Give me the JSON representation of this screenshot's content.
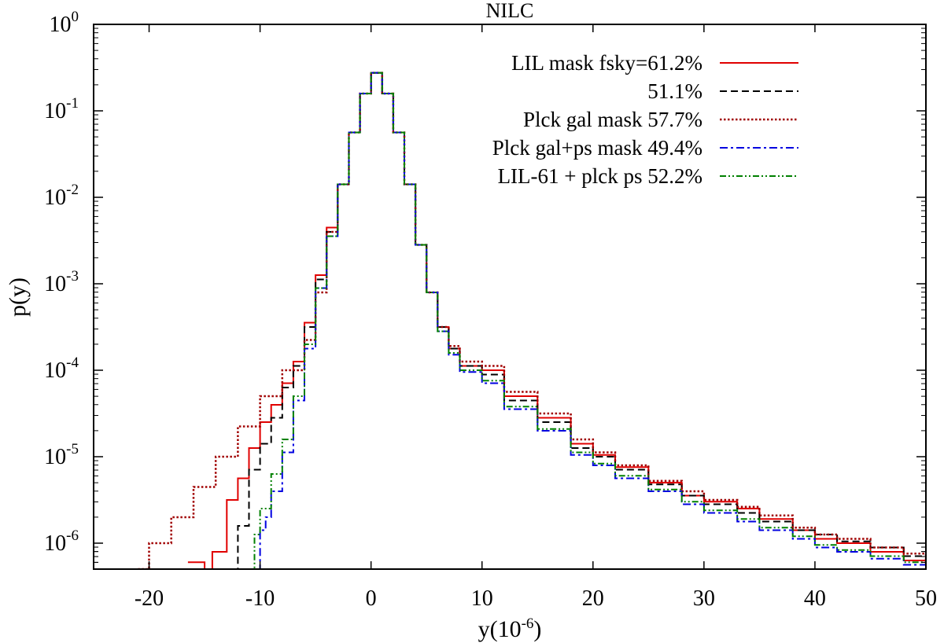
{
  "chart_data": {
    "type": "line",
    "title": "NILC",
    "xlabel": "y(10",
    "xlabel_exponent": "-6",
    "xlabel_suffix": ")",
    "ylabel": "p(y)",
    "yscale": "log",
    "xlim": [
      -25,
      50
    ],
    "ylim_log10": [
      -6.3,
      0
    ],
    "x_ticks": [
      -20,
      -10,
      0,
      10,
      20,
      30,
      40,
      50
    ],
    "x_tick_labels": [
      "-20",
      "-10",
      "0",
      "10",
      "20",
      "30",
      "40",
      "50"
    ],
    "y_ticks_exp": [
      0,
      -1,
      -2,
      -3,
      -4,
      -5,
      -6
    ],
    "y_tick_base": "10",
    "y_tick_exponents": [
      "0",
      "-1",
      "-2",
      "-3",
      "-4",
      "-5",
      "-6"
    ],
    "legend_position": "top-right",
    "series": [
      {
        "name": "LIL mask fsky=61.2%",
        "color": "#e00000",
        "dash": "solid",
        "x": [
          -16.5,
          -15,
          -14.3,
          -13,
          -12,
          -11,
          -10,
          -9,
          -8,
          -7,
          -6,
          -5,
          -4,
          -3,
          -2,
          -1,
          0,
          1,
          2,
          3,
          4,
          5,
          6,
          7,
          8,
          10,
          12,
          15,
          18,
          20,
          22,
          25,
          28,
          30,
          33,
          35,
          38,
          40,
          42,
          45,
          48,
          50
        ],
        "logp": [
          -6.22,
          -6.3,
          -6.1,
          -5.5,
          -5.25,
          -4.9,
          -4.6,
          -4.4,
          -4.15,
          -3.9,
          -3.45,
          -2.9,
          -2.35,
          -1.85,
          -1.25,
          -0.8,
          -0.56,
          -0.8,
          -1.25,
          -1.85,
          -2.55,
          -3.1,
          -3.5,
          -3.75,
          -3.95,
          -4.0,
          -4.3,
          -4.55,
          -4.85,
          -4.98,
          -5.12,
          -5.3,
          -5.45,
          -5.52,
          -5.6,
          -5.72,
          -5.85,
          -5.95,
          -6.0,
          -6.1,
          -6.2,
          -6.3
        ]
      },
      {
        "name": "51.1%",
        "color": "#000000",
        "dash": "dashed",
        "x": [
          -13.5,
          -12,
          -11,
          -10,
          -9,
          -8,
          -7,
          -6,
          -5,
          -4,
          -3,
          -2,
          -1,
          0,
          1,
          2,
          3,
          4,
          5,
          6,
          7,
          8,
          10,
          12,
          15,
          18,
          20,
          22,
          25,
          28,
          30,
          33,
          35,
          38,
          40,
          42,
          45,
          48,
          50
        ],
        "logp": [
          -6.3,
          -5.8,
          -5.15,
          -4.85,
          -4.55,
          -4.2,
          -3.95,
          -3.5,
          -2.95,
          -2.4,
          -1.85,
          -1.25,
          -0.8,
          -0.56,
          -0.8,
          -1.25,
          -1.85,
          -2.55,
          -3.1,
          -3.5,
          -3.75,
          -3.95,
          -4.05,
          -4.35,
          -4.6,
          -4.9,
          -5.0,
          -5.15,
          -5.32,
          -5.45,
          -5.55,
          -5.65,
          -5.75,
          -5.85,
          -5.9,
          -5.98,
          -6.05,
          -6.15,
          -6.2
        ]
      },
      {
        "name": "Plck gal mask 57.7%",
        "color": "#a00000",
        "dash": "dotted",
        "x": [
          -21,
          -20,
          -18,
          -16,
          -14,
          -12,
          -10,
          -8,
          -6,
          -5,
          -4,
          -3,
          -2,
          -1,
          0,
          1,
          2,
          3,
          4,
          5,
          6,
          7,
          8,
          10,
          12,
          15,
          18,
          20,
          22,
          25,
          28,
          30,
          33,
          35,
          38,
          40,
          42,
          45,
          48,
          50
        ],
        "logp": [
          -6.3,
          -6.0,
          -5.7,
          -5.35,
          -5.0,
          -4.65,
          -4.3,
          -4.0,
          -3.65,
          -3.1,
          -2.4,
          -1.85,
          -1.25,
          -0.8,
          -0.56,
          -0.8,
          -1.25,
          -1.85,
          -2.55,
          -3.1,
          -3.5,
          -3.72,
          -3.9,
          -3.95,
          -4.25,
          -4.5,
          -4.8,
          -4.95,
          -5.1,
          -5.28,
          -5.4,
          -5.5,
          -5.58,
          -5.68,
          -5.82,
          -5.9,
          -5.95,
          -6.05,
          -6.12,
          -6.25
        ]
      },
      {
        "name": "Plck gal+ps mask 49.4%",
        "color": "#0000e0",
        "dash": "dashdot",
        "x": [
          -10.3,
          -10,
          -9.5,
          -9,
          -8,
          -7,
          -6,
          -5,
          -4,
          -3,
          -2,
          -1,
          0,
          1,
          2,
          3,
          4,
          5,
          6,
          7,
          8,
          10,
          12,
          15,
          18,
          20,
          22,
          25,
          28,
          30,
          33,
          35,
          38,
          40,
          42,
          45,
          48,
          50
        ],
        "logp": [
          -6.3,
          -5.85,
          -5.7,
          -5.4,
          -4.95,
          -4.35,
          -3.75,
          -3.05,
          -2.45,
          -1.85,
          -1.25,
          -0.8,
          -0.56,
          -0.8,
          -1.25,
          -1.85,
          -2.55,
          -3.1,
          -3.55,
          -3.82,
          -4.02,
          -4.15,
          -4.45,
          -4.7,
          -4.98,
          -5.1,
          -5.25,
          -5.4,
          -5.55,
          -5.65,
          -5.75,
          -5.85,
          -5.95,
          -6.05,
          -6.1,
          -6.18,
          -6.25,
          -6.3
        ]
      },
      {
        "name": "LIL-61 + plck ps 52.2%",
        "color": "#008000",
        "dash": "dashdotdot",
        "x": [
          -11.2,
          -10.5,
          -10,
          -9,
          -8,
          -7,
          -6,
          -5,
          -4,
          -3,
          -2,
          -1,
          0,
          1,
          2,
          3,
          4,
          5,
          6,
          7,
          8,
          10,
          12,
          15,
          18,
          20,
          22,
          25,
          28,
          30,
          33,
          35,
          38,
          40,
          42,
          45,
          48,
          50
        ],
        "logp": [
          -6.3,
          -5.9,
          -5.6,
          -5.2,
          -4.8,
          -4.3,
          -3.7,
          -3.05,
          -2.45,
          -1.85,
          -1.25,
          -0.8,
          -0.56,
          -0.8,
          -1.25,
          -1.85,
          -2.55,
          -3.1,
          -3.55,
          -3.8,
          -4.0,
          -4.12,
          -4.42,
          -4.68,
          -4.95,
          -5.08,
          -5.22,
          -5.38,
          -5.52,
          -5.62,
          -5.72,
          -5.82,
          -5.92,
          -6.02,
          -6.08,
          -6.15,
          -6.22,
          -6.3
        ]
      }
    ]
  }
}
